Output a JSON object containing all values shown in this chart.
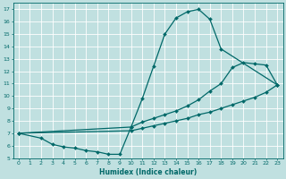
{
  "xlabel": "Humidex (Indice chaleur)",
  "ylabel": "",
  "xlim": [
    -0.5,
    23.5
  ],
  "ylim": [
    5,
    17.5
  ],
  "xticks": [
    0,
    1,
    2,
    3,
    4,
    5,
    6,
    7,
    8,
    9,
    10,
    11,
    12,
    13,
    14,
    15,
    16,
    17,
    18,
    19,
    20,
    21,
    22,
    23
  ],
  "yticks": [
    5,
    6,
    7,
    8,
    9,
    10,
    11,
    12,
    13,
    14,
    15,
    16,
    17
  ],
  "bg_color": "#c0e0e0",
  "line_color": "#006868",
  "grid_color": "#ffffff",
  "series": [
    {
      "x": [
        0,
        2,
        3,
        4,
        5,
        6,
        7,
        8,
        9,
        10,
        11,
        12,
        13,
        14,
        15,
        16,
        17,
        18,
        23
      ],
      "y": [
        7.0,
        6.6,
        6.1,
        5.9,
        5.8,
        5.6,
        5.5,
        5.3,
        5.3,
        7.5,
        9.8,
        12.4,
        15.0,
        16.3,
        16.8,
        17.0,
        16.2,
        13.8,
        10.9
      ]
    },
    {
      "x": [
        0,
        10,
        11,
        12,
        13,
        14,
        15,
        16,
        17,
        18,
        19,
        20,
        21,
        22,
        23
      ],
      "y": [
        7.0,
        7.5,
        7.9,
        8.2,
        8.5,
        8.8,
        9.2,
        9.7,
        10.4,
        11.0,
        12.3,
        12.7,
        12.6,
        12.5,
        10.9
      ]
    },
    {
      "x": [
        0,
        10,
        11,
        12,
        13,
        14,
        15,
        16,
        17,
        18,
        19,
        20,
        21,
        22,
        23
      ],
      "y": [
        7.0,
        7.2,
        7.4,
        7.6,
        7.8,
        8.0,
        8.2,
        8.5,
        8.7,
        9.0,
        9.3,
        9.6,
        9.9,
        10.3,
        10.9
      ]
    }
  ]
}
